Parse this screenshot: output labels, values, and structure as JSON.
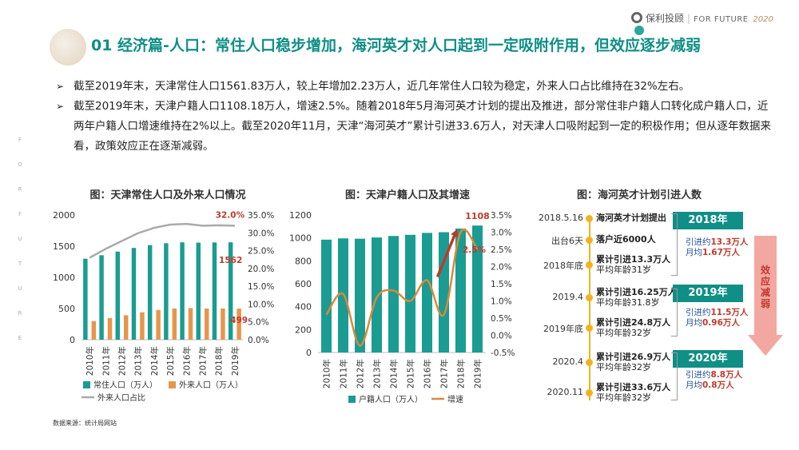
{
  "header": {
    "title": "01 经济篇-人口：常住人口稳步增加，海河英才对人口起到一定吸附作用，但效应逐步减弱",
    "brand_name": "保利",
    "brand_sub": "投顾",
    "brand_slogan": "FOR FUTURE",
    "brand_year": "2020"
  },
  "side_letters": [
    "F",
    "O",
    "R",
    "F",
    "U",
    "T",
    "U",
    "R",
    "E"
  ],
  "bullets": [
    "截至2019年末，天津常住人口1561.83万人，较上年增加2.23万人，近几年常住人口较为稳定，外来人口占比维持在32%左右。",
    "截至2019年末，天津户籍人口1108.18万人，增速2.5%。随着2018年5月海河英才计划的提出及推进，部分常住非户籍人口转化成户籍人口，近两年户籍人口增速维持在2%以上。截至2020年11月，天津“海河英才”累计引进33.6万人，对天津人口吸附起到一定的积极作用；但从逐年数据来看，政策效应正在逐渐减弱。"
  ],
  "source": "数据来源：统计局网站",
  "chart_data": [
    {
      "type": "bar",
      "title": "图：天津常住人口及外来人口情况",
      "categories": [
        "2010年",
        "2011年",
        "2012年",
        "2013年",
        "2014年",
        "2015年",
        "2016年",
        "2017年",
        "2018年",
        "2019年"
      ],
      "series": [
        {
          "name": "常住人口（万人）",
          "type": "bar",
          "axis": "left",
          "color": "#1a9c93",
          "values": [
            1299,
            1355,
            1413,
            1472,
            1517,
            1547,
            1562,
            1557,
            1560,
            1562
          ]
        },
        {
          "name": "外来人口（万人）",
          "type": "bar",
          "axis": "left",
          "color": "#e8954a",
          "values": [
            299,
            346,
            392,
            440,
            476,
            500,
            507,
            499,
            500,
            499
          ]
        },
        {
          "name": "外来人口占比",
          "type": "line",
          "axis": "right",
          "color": "#aaaaaa",
          "values": [
            23.0,
            25.5,
            27.7,
            29.9,
            31.4,
            32.3,
            32.5,
            32.0,
            32.1,
            32.0
          ]
        }
      ],
      "data_labels": {
        "bar_last": "1562",
        "bar2_last": "499",
        "line_last": "32.0%"
      },
      "y_left": {
        "min": 0,
        "max": 2000,
        "ticks": [
          "0",
          "500",
          "1000",
          "1500",
          "2000"
        ]
      },
      "y_right": {
        "min": 0,
        "max": 35,
        "ticks": [
          "0.0%",
          "5.0%",
          "10.0%",
          "15.0%",
          "20.0%",
          "25.0%",
          "30.0%",
          "35.0%"
        ]
      },
      "legend_position": "bottom"
    },
    {
      "type": "bar",
      "title": "图：天津户籍人口及其增速",
      "categories": [
        "2010年",
        "2011年",
        "2012年",
        "2013年",
        "2014年",
        "2015年",
        "2016年",
        "2017年",
        "2018年",
        "2019年"
      ],
      "series": [
        {
          "name": "户籍人口（万人）",
          "type": "bar",
          "axis": "left",
          "color": "#1a9c93",
          "values": [
            985,
            996,
            993,
            1004,
            1017,
            1027,
            1044,
            1050,
            1082,
            1108
          ]
        },
        {
          "name": "增速",
          "type": "line",
          "axis": "right",
          "color": "#d88a3a",
          "values": [
            0.6,
            1.2,
            -0.3,
            1.1,
            1.3,
            1.0,
            1.6,
            0.6,
            3.0,
            2.5
          ]
        }
      ],
      "data_labels": {
        "bar_last": "1108",
        "line_last": "2.5%"
      },
      "y_left": {
        "min": 0,
        "max": 1200,
        "ticks": [
          "0",
          "200",
          "400",
          "600",
          "800",
          "1000",
          "1200"
        ]
      },
      "y_right": {
        "min": -0.5,
        "max": 3.5,
        "ticks": [
          "-0.5%",
          "0.0%",
          "0.5%",
          "1.0%",
          "1.5%",
          "2.0%",
          "2.5%",
          "3.0%",
          "3.5%"
        ]
      },
      "legend_position": "bottom"
    }
  ],
  "timeline": {
    "title": "图：海河英才计划引进人数",
    "events": [
      {
        "date": "2018.5.16",
        "text": "海河英才计划提出",
        "sub": ""
      },
      {
        "date": "出台6天",
        "text": "落户近6000人",
        "sub": ""
      },
      {
        "date": "2018年底",
        "text": "累计引进13.3万人",
        "sub": "平均年龄31岁"
      },
      {
        "date": "2019.4",
        "text": "累计引进16.25万人",
        "sub": "平均年龄31.8岁"
      },
      {
        "date": "2019年底",
        "text": "累计引进24.8万人",
        "sub": "平均年龄32岁"
      },
      {
        "date": "2020.4",
        "text": "累计引进26.9万人",
        "sub": "平均年龄32岁"
      },
      {
        "date": "2020.11",
        "text": "累计引进33.6万人",
        "sub": "平均年龄32岁"
      }
    ],
    "years": [
      {
        "label": "2018年",
        "intro_prefix": "引进约",
        "intro": "13.3万人",
        "monthly_prefix": "月均",
        "monthly": "1.67万人"
      },
      {
        "label": "2019年",
        "intro_prefix": "引进约",
        "intro": "11.5万人",
        "monthly_prefix": "月均",
        "monthly": "0.96万人"
      },
      {
        "label": "2020年",
        "intro_prefix": "引进约",
        "intro": "8.8万人",
        "monthly_prefix": "月均",
        "monthly": "0.8万人"
      }
    ],
    "effect_label": "效应减弱",
    "colors": {
      "year_box": "#0f8f86",
      "dot": "#f2b21f",
      "arrow": "#f2a7a0",
      "accent": "#c0392b"
    }
  }
}
